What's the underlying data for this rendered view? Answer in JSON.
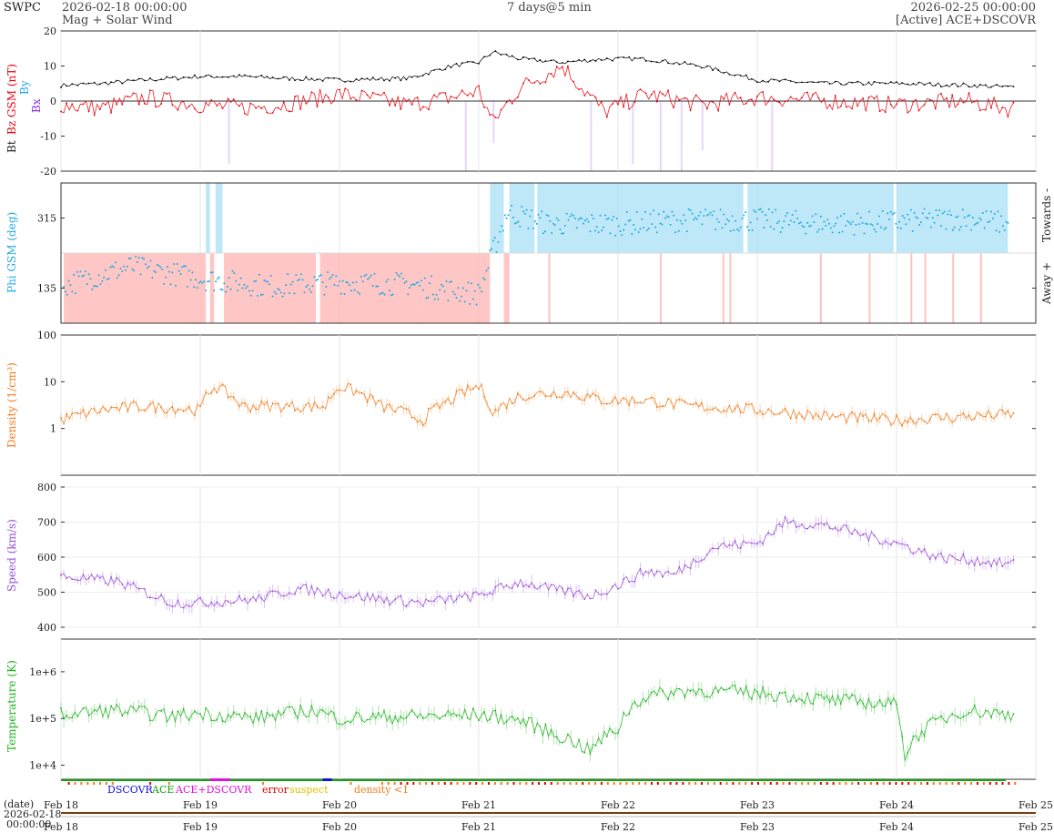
{
  "header": {
    "brand": "SWPC",
    "start_time": "2026-02-18 00:00:00",
    "subtitle": "Mag + Solar Wind",
    "span": "7 days@5 min",
    "end_time": "2026-02-25 00:00:00",
    "source": "[Active] ACE+DSCOVR"
  },
  "colors": {
    "bt": "#000000",
    "bz": "#e8000b",
    "by": "#1fa9e1",
    "bx": "#8a2be2",
    "phi_away": "#ffb3b3",
    "phi_towards": "#a8e0f5",
    "phi_points": "#1fa9e1",
    "density": "#f07c1c",
    "speed": "#9b4fd8",
    "temperature": "#22b322",
    "dscovr": "#1010e0",
    "ace": "#10a010",
    "ace_dscovr": "#e010e0",
    "error": "#e00000",
    "suspect": "#e0c000",
    "density_lt1": "#f07c1c"
  },
  "panels": {
    "mag": {
      "label_bt": "Bt",
      "label_bz": "Bz GSM (nT)",
      "label_by": "By",
      "label_bx": "Bx"
    },
    "phi": {
      "label": "Phi GSM (deg)",
      "right_top": "Towards -",
      "right_bottom": "Away +"
    },
    "density": {
      "label": "Density (1/cm³)"
    },
    "speed": {
      "label": "Speed (km/s)"
    },
    "temperature": {
      "label": "Temperature (K)"
    }
  },
  "legend": {
    "dscovr": "DSCOVR",
    "ace": "ACE",
    "ace_dscovr": "ACE+DSCOVR",
    "error": "error",
    "suspect": "suspect",
    "density_lt1": "density <1"
  },
  "time_axis": {
    "date_label": "(date)",
    "date_value": "2026-02-18",
    "time_value": "00:00:00",
    "ticks": [
      "Feb 18",
      "Feb 19",
      "Feb 20",
      "Feb 21",
      "Feb 22",
      "Feb 23",
      "Feb 24",
      "Feb 25"
    ]
  },
  "chart_data": [
    {
      "type": "line",
      "title": "",
      "ylabel": "Bt / Bz GSM (nT)",
      "x_unit": "days since 2026-02-18 00:00",
      "ylim": [
        -20,
        20
      ],
      "yticks": [
        "20",
        "10",
        "0",
        "-10",
        "-20"
      ],
      "series": [
        {
          "name": "Bt",
          "x": [
            0,
            0.3,
            0.6,
            1.0,
            1.3,
            1.6,
            2.0,
            2.5,
            2.8,
            3.0,
            3.1,
            3.3,
            3.6,
            3.9,
            4.2,
            4.6,
            5.0,
            5.5,
            6.0,
            6.5,
            6.8
          ],
          "y": [
            4.5,
            5,
            6,
            7,
            7,
            6.5,
            6,
            6.5,
            10,
            11,
            14,
            12,
            11,
            12,
            12,
            10,
            6,
            5,
            5,
            4.5,
            4
          ]
        },
        {
          "name": "Bz GSM",
          "x": [
            0,
            0.3,
            0.6,
            1.0,
            1.3,
            1.6,
            2.0,
            2.5,
            2.8,
            3.0,
            3.1,
            3.3,
            3.6,
            3.9,
            4.2,
            4.6,
            5.0,
            5.5,
            6.0,
            6.5,
            6.8
          ],
          "y": [
            -1,
            -2,
            1,
            -1,
            -2,
            -1,
            2,
            -1,
            1,
            3,
            -6,
            4,
            10,
            -3,
            2,
            -1,
            1,
            0,
            -1,
            0,
            -2
          ]
        }
      ]
    },
    {
      "type": "scatter",
      "title": "",
      "ylabel": "Phi GSM (deg)",
      "ylim": [
        45,
        405
      ],
      "yticks": [
        "315",
        "135"
      ],
      "series": [
        {
          "name": "Phi GSM",
          "x": [
            0,
            0.5,
            1.0,
            1.5,
            2.0,
            2.5,
            2.8,
            3.0,
            3.2,
            3.5,
            4.0,
            4.5,
            5.0,
            5.5,
            6.0,
            6.5,
            6.8
          ],
          "y": [
            140,
            190,
            160,
            140,
            150,
            145,
            130,
            120,
            330,
            300,
            300,
            310,
            310,
            300,
            305,
            315,
            300
          ]
        }
      ]
    },
    {
      "type": "line",
      "title": "",
      "ylabel": "Density (1/cm³)",
      "log_y": true,
      "ylim": [
        0.1,
        100
      ],
      "yticks": [
        "100",
        "10",
        "1"
      ],
      "series": [
        {
          "name": "Density",
          "x": [
            0,
            0.3,
            0.6,
            1.0,
            1.1,
            1.3,
            1.6,
            1.9,
            2.0,
            2.3,
            2.5,
            2.6,
            2.8,
            3.0,
            3.1,
            3.3,
            3.6,
            3.9,
            4.2,
            4.5,
            5.0,
            5.5,
            6.0,
            6.5,
            6.8
          ],
          "y": [
            1.5,
            2.5,
            3,
            2.5,
            8,
            3,
            3,
            3,
            8,
            3,
            2,
            1.5,
            4,
            8,
            2,
            5,
            6,
            4,
            4,
            3,
            2.5,
            1.8,
            1.5,
            1.8,
            2
          ]
        }
      ]
    },
    {
      "type": "line",
      "title": "",
      "ylabel": "Speed (km/s)",
      "ylim": [
        400,
        800
      ],
      "yticks": [
        "800",
        "700",
        "600",
        "500",
        "400"
      ],
      "series": [
        {
          "name": "Speed",
          "x": [
            0,
            0.4,
            0.8,
            1.0,
            1.4,
            1.7,
            2.0,
            2.3,
            2.6,
            3.0,
            3.3,
            3.5,
            3.8,
            4.0,
            4.2,
            4.4,
            4.7,
            5.0,
            5.2,
            5.5,
            5.8,
            6.0,
            6.3,
            6.6,
            6.8
          ],
          "y": [
            545,
            530,
            470,
            470,
            480,
            510,
            495,
            480,
            470,
            490,
            530,
            510,
            490,
            520,
            560,
            550,
            630,
            640,
            700,
            690,
            660,
            640,
            600,
            590,
            580
          ]
        }
      ]
    },
    {
      "type": "line",
      "title": "",
      "ylabel": "Temperature (K)",
      "log_y": true,
      "ylim": [
        5000,
        5000000
      ],
      "yticks": [
        "1e+6",
        "1e+5",
        "1e+4"
      ],
      "series": [
        {
          "name": "Temperature",
          "x": [
            0,
            0.4,
            0.8,
            1.0,
            1.4,
            1.8,
            2.0,
            2.5,
            3.0,
            3.3,
            3.5,
            3.8,
            4.0,
            4.2,
            4.5,
            5.0,
            5.5,
            6.0,
            6.05,
            6.5,
            6.8
          ],
          "y": [
            120000,
            150000,
            110000,
            130000,
            100000,
            150000,
            100000,
            110000,
            120000,
            90000,
            50000,
            20000,
            60000,
            300000,
            400000,
            350000,
            250000,
            200000,
            12000,
            150000,
            120000
          ]
        }
      ]
    }
  ]
}
